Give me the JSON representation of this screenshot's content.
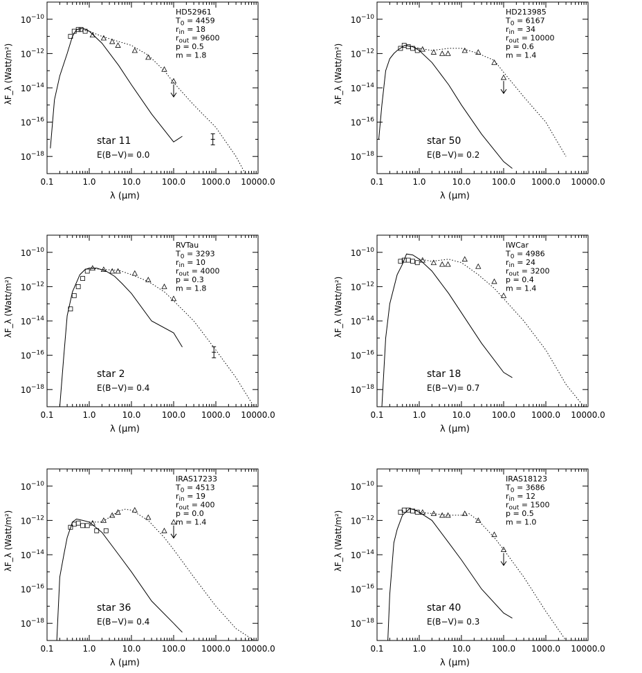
{
  "figure": {
    "xlabel": "λ (μm)",
    "ylabel": "λF_λ (Watt/m²)",
    "x_ticks": [
      "0.1",
      "1.0",
      "10.0",
      "100.0",
      "1000.0",
      "10000.0"
    ],
    "y_ticks": [
      "10^-10",
      "10^-12",
      "10^-14",
      "10^-16",
      "10^-18"
    ]
  },
  "chart_data": [
    {
      "type": "scatter",
      "name": "HD52961",
      "star_label": "star 11",
      "ebv_label": "E(B−V)= 0.0",
      "params": {
        "T0": "4459",
        "rin": "18",
        "rout": "9600",
        "p": "0.5",
        "m": "1.8"
      },
      "xscale": "log",
      "yscale": "log",
      "xlim": [
        0.1,
        10000
      ],
      "ylim": [
        1e-19,
        1e-09
      ],
      "photosphere": [
        [
          0.12,
          3e-18
        ],
        [
          0.15,
          2e-15
        ],
        [
          0.2,
          5e-14
        ],
        [
          0.3,
          1e-12
        ],
        [
          0.4,
          1e-11
        ],
        [
          0.5,
          2.5e-11
        ],
        [
          0.7,
          3e-11
        ],
        [
          1,
          2e-11
        ],
        [
          2,
          4e-12
        ],
        [
          5,
          2e-13
        ],
        [
          10,
          1.5e-14
        ],
        [
          30,
          3e-16
        ],
        [
          100,
          7e-18
        ],
        [
          160,
          1.5e-17
        ]
      ],
      "model_dust": [
        [
          0.5,
          2.5e-11
        ],
        [
          1,
          2e-11
        ],
        [
          2,
          1e-11
        ],
        [
          5,
          5e-12
        ],
        [
          10,
          3e-12
        ],
        [
          25,
          8e-13
        ],
        [
          60,
          1e-13
        ],
        [
          100,
          2e-14
        ],
        [
          300,
          1e-15
        ],
        [
          1000,
          5e-17
        ],
        [
          3000,
          1e-18
        ],
        [
          5000,
          1e-19
        ]
      ],
      "triangles": [
        [
          1.2,
          1.2e-11
        ],
        [
          2.2,
          8e-12
        ],
        [
          3.5,
          5e-12
        ],
        [
          4.8,
          3e-12
        ],
        [
          12,
          1.5e-12
        ],
        [
          25,
          6e-13
        ],
        [
          60,
          1.2e-13
        ],
        [
          100,
          2.5e-14
        ]
      ],
      "squares": [
        [
          0.36,
          1e-11
        ],
        [
          0.44,
          2e-11
        ],
        [
          0.55,
          2.5e-11
        ],
        [
          0.64,
          2.5e-11
        ],
        [
          0.8,
          2e-11
        ]
      ],
      "upper_limits": [
        [
          100,
          2.5e-14
        ]
      ],
      "errorbars": [
        [
          850,
          1e-17
        ]
      ]
    },
    {
      "type": "scatter",
      "name": "HD213985",
      "star_label": "star 50",
      "ebv_label": "E(B−V)= 0.2",
      "params": {
        "T0": "6167",
        "rin": "34",
        "rout": "10000",
        "p": "0.6",
        "m": "1.4"
      },
      "xscale": "log",
      "yscale": "log",
      "xlim": [
        0.1,
        10000
      ],
      "ylim": [
        1e-19,
        1e-09
      ],
      "photosphere": [
        [
          0.11,
          1e-17
        ],
        [
          0.13,
          1e-15
        ],
        [
          0.16,
          1e-13
        ],
        [
          0.2,
          5e-13
        ],
        [
          0.25,
          1e-12
        ],
        [
          0.3,
          1.5e-12
        ],
        [
          0.45,
          3e-12
        ],
        [
          0.7,
          2.5e-12
        ],
        [
          1,
          1.5e-12
        ],
        [
          2,
          3e-13
        ],
        [
          5,
          1.5e-14
        ],
        [
          10,
          1e-15
        ],
        [
          30,
          2e-17
        ],
        [
          100,
          5e-19
        ],
        [
          160,
          2e-19
        ]
      ],
      "model_dust": [
        [
          0.5,
          3e-12
        ],
        [
          1,
          2e-12
        ],
        [
          2,
          1.5e-12
        ],
        [
          5,
          2e-12
        ],
        [
          10,
          2e-12
        ],
        [
          25,
          1e-12
        ],
        [
          60,
          4e-13
        ],
        [
          100,
          8e-14
        ],
        [
          300,
          3e-15
        ],
        [
          1000,
          1e-16
        ],
        [
          3000,
          1e-18
        ]
      ],
      "triangles": [
        [
          1.2,
          1.8e-12
        ],
        [
          2.2,
          1.2e-12
        ],
        [
          3.5,
          1e-12
        ],
        [
          4.8,
          1e-12
        ],
        [
          12,
          1.5e-12
        ],
        [
          25,
          1.2e-12
        ],
        [
          60,
          3e-13
        ],
        [
          100,
          4e-14
        ]
      ],
      "squares": [
        [
          0.36,
          2e-12
        ],
        [
          0.44,
          3e-12
        ],
        [
          0.55,
          2.5e-12
        ],
        [
          0.7,
          2e-12
        ],
        [
          0.9,
          1.5e-12
        ]
      ],
      "upper_limits": [
        [
          100,
          4e-14
        ]
      ],
      "errorbars": []
    },
    {
      "type": "scatter",
      "name": "RVTau",
      "star_label": "star 2",
      "ebv_label": "E(B−V)= 0.4",
      "params": {
        "T0": "3293",
        "rin": "10",
        "rout": "4000",
        "p": "0.3",
        "m": "1.8"
      },
      "xscale": "log",
      "yscale": "log",
      "xlim": [
        0.1,
        10000
      ],
      "ylim": [
        1e-19,
        1e-09
      ],
      "photosphere": [
        [
          0.2,
          1e-19
        ],
        [
          0.25,
          1e-16
        ],
        [
          0.3,
          2e-14
        ],
        [
          0.4,
          5e-13
        ],
        [
          0.6,
          5e-12
        ],
        [
          0.8,
          1e-11
        ],
        [
          1,
          1.2e-11
        ],
        [
          1.5,
          1.2e-11
        ],
        [
          2.5,
          8e-12
        ],
        [
          4,
          4e-12
        ],
        [
          6,
          1.5e-12
        ],
        [
          10,
          4e-13
        ],
        [
          30,
          1e-14
        ],
        [
          100,
          2e-15
        ],
        [
          160,
          3e-16
        ]
      ],
      "model_dust": [
        [
          1,
          1.2e-11
        ],
        [
          2,
          1e-11
        ],
        [
          5,
          9e-12
        ],
        [
          10,
          5e-12
        ],
        [
          25,
          2e-12
        ],
        [
          60,
          5e-13
        ],
        [
          100,
          1.5e-13
        ],
        [
          300,
          1e-14
        ],
        [
          1000,
          2e-16
        ],
        [
          3000,
          5e-18
        ],
        [
          8000,
          1e-19
        ]
      ],
      "triangles": [
        [
          1.2,
          1.2e-11
        ],
        [
          2.2,
          1e-11
        ],
        [
          3.5,
          8e-12
        ],
        [
          4.8,
          8e-12
        ],
        [
          12,
          6e-12
        ],
        [
          25,
          2.5e-12
        ],
        [
          60,
          1e-12
        ],
        [
          100,
          2e-13
        ]
      ],
      "squares": [
        [
          0.36,
          5e-14
        ],
        [
          0.44,
          3e-13
        ],
        [
          0.55,
          1e-12
        ],
        [
          0.7,
          3e-12
        ],
        [
          0.9,
          8e-12
        ]
      ],
      "upper_limits": [],
      "errorbars": [
        [
          900,
          1.5e-16
        ]
      ]
    },
    {
      "type": "scatter",
      "name": "IWCar",
      "star_label": "star 18",
      "ebv_label": "E(B−V)= 0.7",
      "params": {
        "T0": "4986",
        "rin": "24",
        "rout": "3200",
        "p": "0.4",
        "m": "1.4"
      },
      "xscale": "log",
      "yscale": "log",
      "xlim": [
        0.1,
        10000
      ],
      "ylim": [
        1e-19,
        1e-09
      ],
      "photosphere": [
        [
          0.13,
          1e-19
        ],
        [
          0.16,
          1e-15
        ],
        [
          0.2,
          1e-13
        ],
        [
          0.3,
          5e-12
        ],
        [
          0.4,
          2e-11
        ],
        [
          0.5,
          8e-11
        ],
        [
          0.7,
          7e-11
        ],
        [
          1,
          4e-11
        ],
        [
          2,
          8e-12
        ],
        [
          5,
          4e-13
        ],
        [
          10,
          3e-14
        ],
        [
          30,
          5e-16
        ],
        [
          100,
          1e-17
        ],
        [
          160,
          5e-18
        ]
      ],
      "model_dust": [
        [
          1,
          4e-11
        ],
        [
          2,
          3e-11
        ],
        [
          5,
          4e-11
        ],
        [
          10,
          2.5e-11
        ],
        [
          25,
          5e-12
        ],
        [
          60,
          8e-13
        ],
        [
          100,
          2e-13
        ],
        [
          300,
          1e-14
        ],
        [
          1000,
          2e-16
        ],
        [
          3000,
          2e-18
        ],
        [
          8000,
          1e-19
        ]
      ],
      "triangles": [
        [
          1.2,
          3.5e-11
        ],
        [
          2.2,
          2.5e-11
        ],
        [
          3.5,
          2e-11
        ],
        [
          4.8,
          2e-11
        ],
        [
          12,
          4e-11
        ],
        [
          25,
          1.5e-11
        ],
        [
          60,
          2e-12
        ],
        [
          100,
          3e-13
        ]
      ],
      "squares": [
        [
          0.36,
          3e-11
        ],
        [
          0.44,
          3.5e-11
        ],
        [
          0.55,
          3.5e-11
        ],
        [
          0.7,
          3e-11
        ],
        [
          0.9,
          2.5e-11
        ]
      ],
      "upper_limits": [],
      "errorbars": []
    },
    {
      "type": "scatter",
      "name": "IRAS17233",
      "star_label": "star 36",
      "ebv_label": "E(B−V)= 0.4",
      "params": {
        "T0": "4513",
        "rin": "19",
        "rout": "400",
        "p": "0.0",
        "m": "1.4"
      },
      "xscale": "log",
      "yscale": "log",
      "xlim": [
        0.1,
        10000
      ],
      "ylim": [
        1e-19,
        1e-09
      ],
      "photosphere": [
        [
          0.17,
          1e-19
        ],
        [
          0.2,
          5e-16
        ],
        [
          0.25,
          1e-14
        ],
        [
          0.3,
          1e-13
        ],
        [
          0.4,
          8e-13
        ],
        [
          0.5,
          1.2e-12
        ],
        [
          0.7,
          1e-12
        ],
        [
          1,
          8e-13
        ],
        [
          2,
          2e-13
        ],
        [
          5,
          1e-14
        ],
        [
          10,
          1e-15
        ],
        [
          30,
          2e-17
        ],
        [
          100,
          1e-18
        ],
        [
          160,
          3e-19
        ]
      ],
      "model_dust": [
        [
          1,
          8e-13
        ],
        [
          2,
          8e-13
        ],
        [
          3,
          1.5e-12
        ],
        [
          5,
          3.5e-12
        ],
        [
          7,
          4.5e-12
        ],
        [
          10,
          4e-12
        ],
        [
          25,
          1e-12
        ],
        [
          60,
          1e-13
        ],
        [
          100,
          2e-14
        ],
        [
          300,
          5e-16
        ],
        [
          1000,
          1e-17
        ],
        [
          3000,
          5e-19
        ],
        [
          8000,
          1e-19
        ]
      ],
      "triangles": [
        [
          1.2,
          7e-13
        ],
        [
          2.2,
          1e-12
        ],
        [
          3.5,
          2e-12
        ],
        [
          4.8,
          3e-12
        ],
        [
          12,
          4e-12
        ],
        [
          25,
          1.5e-12
        ],
        [
          60,
          2.5e-13
        ],
        [
          100,
          8e-13
        ]
      ],
      "squares": [
        [
          0.36,
          4e-13
        ],
        [
          0.44,
          6e-13
        ],
        [
          0.55,
          7e-13
        ],
        [
          0.7,
          5e-13
        ],
        [
          0.9,
          5e-13
        ],
        [
          1.5,
          2.5e-13
        ],
        [
          2.5,
          2.5e-13
        ]
      ],
      "upper_limits": [
        [
          100,
          8e-13
        ]
      ],
      "errorbars": []
    },
    {
      "type": "scatter",
      "name": "IRAS18123",
      "star_label": "star 40",
      "ebv_label": "E(B−V)= 0.3",
      "params": {
        "T0": "3686",
        "rin": "12",
        "rout": "1500",
        "p": "0.5",
        "m": "1.0"
      },
      "xscale": "log",
      "yscale": "log",
      "xlim": [
        0.1,
        10000
      ],
      "ylim": [
        1e-19,
        1e-09
      ],
      "photosphere": [
        [
          0.18,
          1e-19
        ],
        [
          0.2,
          5e-17
        ],
        [
          0.25,
          5e-14
        ],
        [
          0.3,
          3e-13
        ],
        [
          0.4,
          2e-12
        ],
        [
          0.6,
          5e-12
        ],
        [
          0.8,
          4e-12
        ],
        [
          1,
          3e-12
        ],
        [
          2,
          1e-12
        ],
        [
          5,
          5e-14
        ],
        [
          10,
          5e-15
        ],
        [
          30,
          1e-16
        ],
        [
          100,
          4e-18
        ],
        [
          160,
          2e-18
        ]
      ],
      "model_dust": [
        [
          1,
          3e-12
        ],
        [
          2,
          2.5e-12
        ],
        [
          5,
          2e-12
        ],
        [
          10,
          2e-12
        ],
        [
          15,
          2.5e-12
        ],
        [
          25,
          1e-12
        ],
        [
          60,
          1e-13
        ],
        [
          100,
          2e-14
        ],
        [
          300,
          5e-16
        ],
        [
          1000,
          5e-18
        ],
        [
          3000,
          1e-19
        ]
      ],
      "triangles": [
        [
          1.2,
          3e-12
        ],
        [
          2.2,
          2.5e-12
        ],
        [
          3.5,
          2e-12
        ],
        [
          4.8,
          2e-12
        ],
        [
          12,
          2.5e-12
        ],
        [
          25,
          1e-12
        ],
        [
          60,
          1.5e-13
        ],
        [
          100,
          2e-14
        ]
      ],
      "squares": [
        [
          0.36,
          3e-12
        ],
        [
          0.44,
          4e-12
        ],
        [
          0.55,
          4e-12
        ],
        [
          0.7,
          3.5e-12
        ],
        [
          0.9,
          3e-12
        ]
      ],
      "upper_limits": [
        [
          100,
          2e-14
        ]
      ],
      "errorbars": []
    }
  ]
}
